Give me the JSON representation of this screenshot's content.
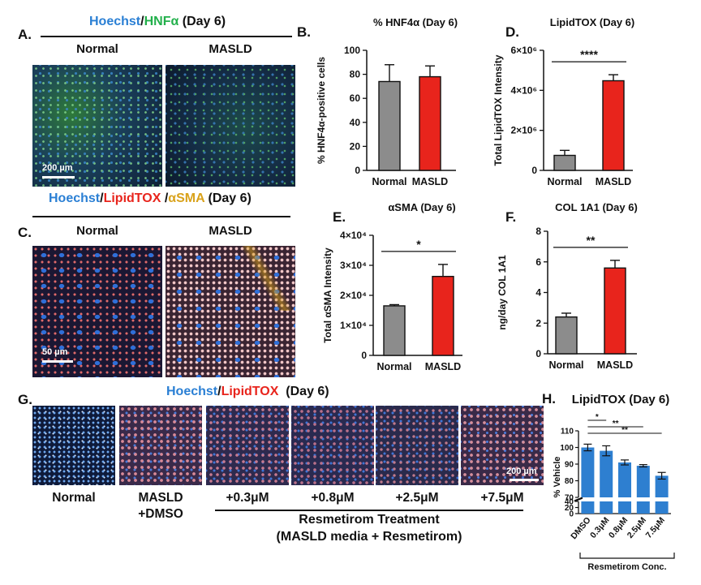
{
  "panelA": {
    "letter": "A.",
    "stains": [
      "Hoechst",
      "/",
      "HNFα",
      " (Day 6)"
    ],
    "conditions": [
      "Normal",
      "MASLD"
    ],
    "scale_bar": "200 µm"
  },
  "panelC": {
    "letter": "C.",
    "stains": [
      "Hoechst",
      "/",
      "LipidTOX",
      " /",
      "αSMA",
      " (Day 6)"
    ],
    "conditions": [
      "Normal",
      "MASLD"
    ],
    "scale_bar": "50 µm"
  },
  "panelG": {
    "letter": "G.",
    "stains": [
      "Hoechst",
      "/",
      "LipidTOX",
      "  (Day 6)"
    ],
    "conditions": [
      "Normal",
      "MASLD\n+DMSO",
      "+0.3μM",
      "+0.8μM",
      "+2.5μM",
      "+7.5μM"
    ],
    "scale_bar": "200 µm",
    "treatment_line1": "Resmetirom Treatment",
    "treatment_line2": "(MASLD media + Resmetirom)"
  },
  "colors": {
    "normal_bar": "#8c8c8c",
    "masld_bar": "#e8241c",
    "resmetirom_bar": "#2e7fd0",
    "hoechst": "#2a7fd4",
    "hnf4a": "#22b04b",
    "lipidtox": "#e8241c",
    "asma": "#d9a21b"
  },
  "chart_data": [
    {
      "id": "B",
      "letter": "B.",
      "type": "bar",
      "title": "% HNF4α (Day 6)",
      "ylabel": "% HNF4α-positive cells",
      "categories": [
        "Normal",
        "MASLD"
      ],
      "values": [
        74,
        78
      ],
      "errors": [
        14,
        9
      ],
      "ylim": [
        0,
        100
      ],
      "yticks": [
        "0",
        "20",
        "40",
        "60",
        "80",
        "100"
      ],
      "significance": []
    },
    {
      "id": "D",
      "letter": "D.",
      "type": "bar",
      "title": "LipidTOX (Day 6)",
      "ylabel": "Total LipidTOX Intensity",
      "categories": [
        "Normal",
        "MASLD"
      ],
      "values": [
        750000,
        4480000
      ],
      "errors": [
        250000,
        300000
      ],
      "ylim": [
        0,
        6000000
      ],
      "yticks": [
        "0",
        "2×10⁶",
        "4×10⁶",
        "6×10⁶"
      ],
      "significance": [
        "****"
      ]
    },
    {
      "id": "E",
      "letter": "E.",
      "type": "bar",
      "title": "αSMA (Day 6)",
      "ylabel": "Total αSMA Intensity",
      "categories": [
        "Normal",
        "MASLD"
      ],
      "values": [
        16500,
        26300
      ],
      "errors": [
        400,
        4000
      ],
      "ylim": [
        0,
        40000
      ],
      "yticks": [
        "0",
        "1×10⁴",
        "2×10⁴",
        "3×10⁴",
        "4×10⁴"
      ],
      "significance": [
        "*"
      ]
    },
    {
      "id": "F",
      "letter": "F.",
      "type": "bar",
      "title": "COL 1A1 (Day 6)",
      "ylabel": "ng/day  COL 1A1",
      "categories": [
        "Normal",
        "MASLD"
      ],
      "values": [
        2.4,
        5.6
      ],
      "errors": [
        0.25,
        0.5
      ],
      "ylim": [
        0,
        8
      ],
      "yticks": [
        "0",
        "2",
        "4",
        "6",
        "8"
      ],
      "significance": [
        "**"
      ]
    },
    {
      "id": "H",
      "letter": "H.",
      "type": "bar",
      "title": "LipidTOX (Day 6)",
      "ylabel": "% Vehicle",
      "xlabel": "Resmetirom Conc.",
      "categories": [
        "DMSO",
        "0.3μM",
        "0.8μM",
        "2.5μM",
        "7.5μM"
      ],
      "values": [
        100,
        98,
        91,
        89,
        83
      ],
      "errors": [
        2,
        3,
        1.5,
        0.7,
        2
      ],
      "ylim": [
        0,
        110
      ],
      "axis_break": [
        40,
        70
      ],
      "yticks": [
        "0",
        "20",
        "40",
        "70",
        "80",
        "90",
        "100",
        "110"
      ],
      "significance": [
        "*",
        "**",
        "**"
      ]
    }
  ]
}
